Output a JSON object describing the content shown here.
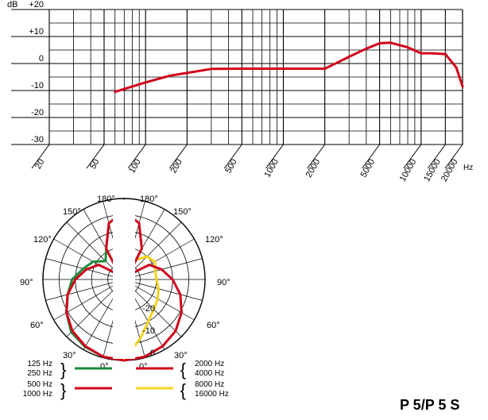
{
  "model": "P 5/P 5 S",
  "chart_data": [
    {
      "type": "line",
      "ylabel": "dB",
      "xlabel": "Hz",
      "xscale": "log",
      "xlim": [
        20,
        20000
      ],
      "ylim": [
        -30,
        20
      ],
      "y_ticks": [
        "+20",
        "+10",
        "0",
        "-10",
        "-20",
        "-30"
      ],
      "x_ticks": [
        "20",
        "50",
        "100",
        "200",
        "500",
        "1000",
        "2000",
        "5000",
        "10000",
        "15000",
        "20000"
      ],
      "grid": true,
      "series": [
        {
          "color": "#d0021b",
          "x": [
            60,
            80,
            100,
            150,
            200,
            300,
            500,
            1000,
            2000,
            2500,
            3000,
            4000,
            5000,
            6000,
            8000,
            10000,
            12000,
            15000,
            18000,
            20000
          ],
          "y": [
            -10.5,
            -8.5,
            -7,
            -4.5,
            -3.5,
            -2,
            -1.9,
            -1.9,
            -1.9,
            0.5,
            2.5,
            5.5,
            7.5,
            7.7,
            6,
            3.8,
            3.8,
            3.5,
            -1.5,
            -8.5
          ]
        }
      ]
    },
    {
      "type": "polar",
      "angle_labels_left": [
        "180°",
        "150°",
        "120°",
        "90°",
        "60°",
        "30°",
        "0°"
      ],
      "angle_labels_right": [
        "180°",
        "150°",
        "120°",
        "90°",
        "60°",
        "30°",
        "0°"
      ],
      "radial_labels": [
        "-20",
        "-10",
        "0"
      ],
      "rlim": [
        -25,
        0
      ],
      "series": [
        {
          "color": "#1e8a3c",
          "angles": [
            0,
            15,
            30,
            45,
            60,
            75,
            90,
            105,
            120,
            135,
            150,
            165,
            180
          ],
          "values": [
            0,
            -0.3,
            -1,
            -2,
            -4.5,
            -7,
            -9,
            -12,
            -14,
            -17,
            -14,
            -7,
            -4
          ]
        },
        {
          "color": "#d0021b",
          "angles": [
            0,
            15,
            30,
            45,
            60,
            75,
            90,
            105,
            120,
            135,
            150,
            165,
            180
          ],
          "values": [
            0,
            -0.3,
            -1.2,
            -2.5,
            -4.5,
            -7,
            -10,
            -13,
            -16,
            -23,
            -14,
            -7,
            -4
          ]
        },
        {
          "color": "#d0021b",
          "angles": [
            0,
            15,
            30,
            45,
            60,
            75,
            90,
            105,
            120,
            135,
            150,
            165,
            180
          ],
          "values": [
            0,
            -0.3,
            -1.2,
            -2.5,
            -4.5,
            -7,
            -10,
            -13,
            -16,
            -23,
            -14,
            -7,
            -4
          ]
        },
        {
          "color": "#f5d21a",
          "angles": [
            0,
            15,
            30,
            45,
            60,
            75,
            90,
            105,
            120,
            135,
            150,
            165,
            180
          ],
          "values": [
            0,
            -6,
            -10,
            -12,
            -13,
            -14,
            -15,
            -15,
            -14,
            -15,
            -18,
            -20,
            -22
          ]
        }
      ]
    }
  ],
  "legend": {
    "left": {
      "group1": [
        "125 Hz",
        "250 Hz"
      ],
      "group2": [
        "500 Hz",
        "1000 Hz"
      ],
      "color1": "#1e8a3c",
      "color2": "#d0021b"
    },
    "right": {
      "group1": [
        "2000 Hz",
        "4000 Hz"
      ],
      "group2": [
        "8000 Hz",
        "16000 Hz"
      ],
      "color1": "#d0021b",
      "color2": "#f5d21a"
    }
  }
}
